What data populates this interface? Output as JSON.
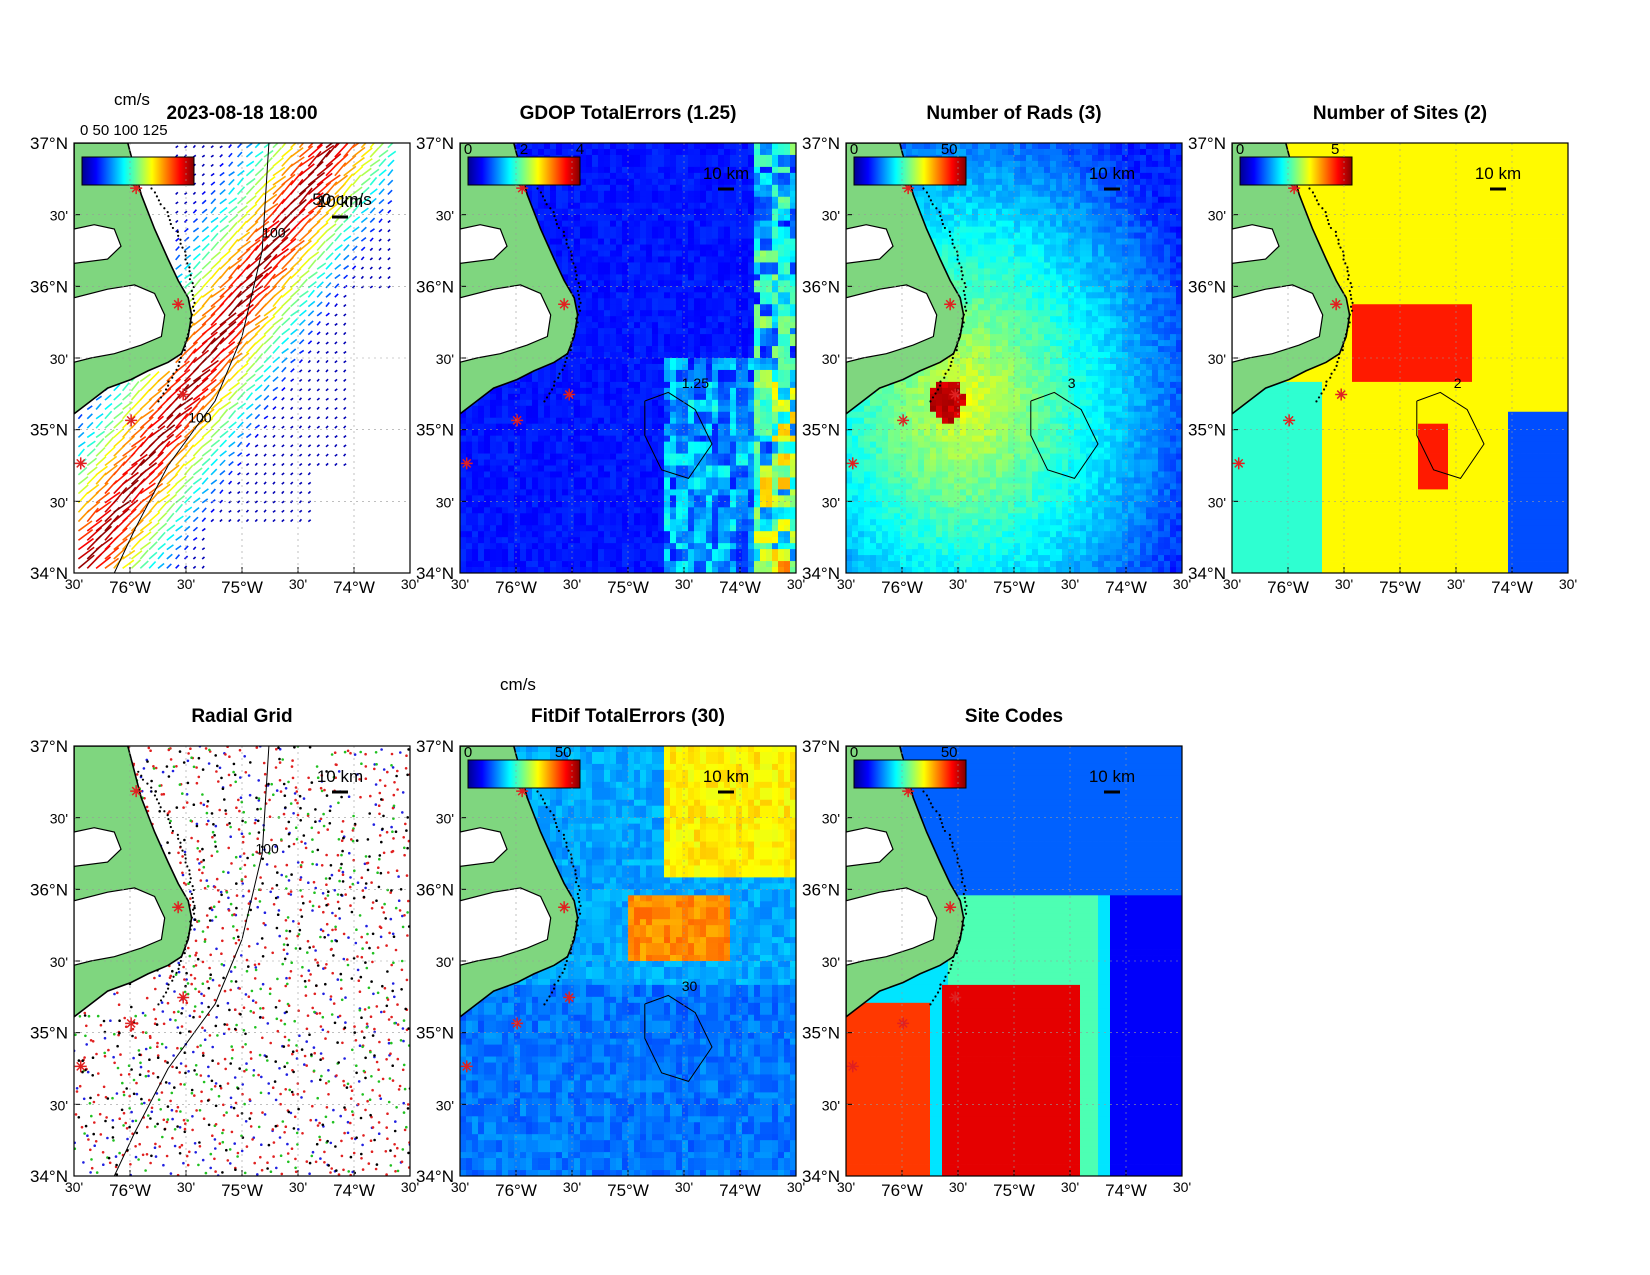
{
  "axes": {
    "lat_labels": [
      "37°N",
      "30'",
      "36°N",
      "30'",
      "35°N",
      "30'",
      "34°N"
    ],
    "lon_labels": [
      "30'",
      "76°W",
      "30'",
      "75°W",
      "30'",
      "74°W",
      "30'"
    ],
    "lat_range": [
      34,
      37
    ],
    "lon_range": [
      -76.5,
      -73.5
    ]
  },
  "scale_bar": "10 km",
  "colors": {
    "land": "#7fd67f",
    "site_marker": "#e02020"
  },
  "panels": [
    {
      "id": "currents",
      "title": "2023-08-18 18:00",
      "colorbar_unit": "cm/s",
      "colorbar_overlay": "0   50   100  125",
      "vector_scale_label": "50 cm/s",
      "contour_label": "100",
      "contour_label_2": "100"
    },
    {
      "id": "gdop",
      "title": "GDOP TotalErrors (1.25)",
      "colorbar_ticks": [
        "0",
        "2",
        "4"
      ],
      "contour_label": "1.25"
    },
    {
      "id": "nrads",
      "title": "Number of Rads (3)",
      "colorbar_ticks": [
        "0",
        "50"
      ],
      "contour_label": "3"
    },
    {
      "id": "nsites",
      "title": "Number of Sites (2)",
      "colorbar_ticks": [
        "0",
        "5"
      ],
      "contour_label": "2"
    },
    {
      "id": "radgrid",
      "title": "Radial Grid",
      "contour_label": "100",
      "site_colors": [
        "#2020e0",
        "#e02020",
        "#20c020",
        "#e02020",
        "#000000"
      ]
    },
    {
      "id": "fitdif",
      "title": "FitDif TotalErrors (30)",
      "colorbar_unit": "cm/s",
      "colorbar_ticks": [
        "0",
        "50"
      ],
      "contour_label": "30"
    },
    {
      "id": "sitecodes",
      "title": "Site Codes",
      "colorbar_ticks": [
        "0",
        "50"
      ]
    }
  ]
}
